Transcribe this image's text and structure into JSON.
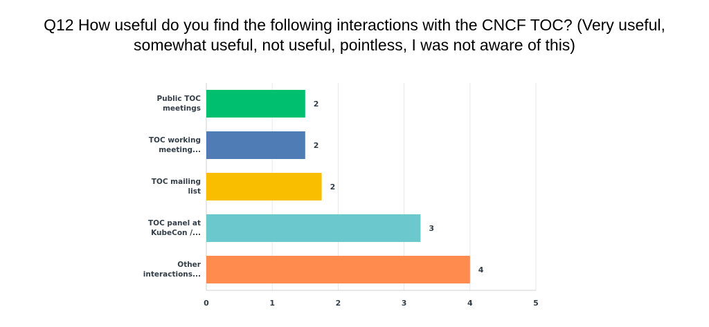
{
  "title_lines": [
    "Q12 How useful do you find the following interactions with the CNCF TOC? (Very useful,",
    "somewhat useful, not useful, pointless, I was not aware of this)"
  ],
  "chart_data": {
    "type": "bar",
    "orientation": "horizontal",
    "title": "Q12 How useful do you find the following interactions with the CNCF TOC? (Very useful, somewhat useful, not useful, pointless, I was not aware of this)",
    "categories": [
      [
        "Public TOC",
        "meetings"
      ],
      [
        "TOC working",
        "meeting..."
      ],
      [
        "TOC mailing",
        "list"
      ],
      [
        "TOC panel at",
        "KubeCon /..."
      ],
      [
        "Other",
        "interactions..."
      ]
    ],
    "values": [
      1.5,
      1.5,
      1.75,
      3.25,
      4.0
    ],
    "data_labels": [
      "2",
      "2",
      "2",
      "3",
      "4"
    ],
    "colors": [
      "#00bf6f",
      "#507cb6",
      "#f9be00",
      "#6bc8cd",
      "#ff8b4f"
    ],
    "xlim": [
      0,
      5
    ],
    "xticks": [
      "0",
      "1",
      "2",
      "3",
      "4",
      "5"
    ],
    "grid": true,
    "grid_color": "#e6e6e6",
    "xlabel": "",
    "ylabel": ""
  }
}
